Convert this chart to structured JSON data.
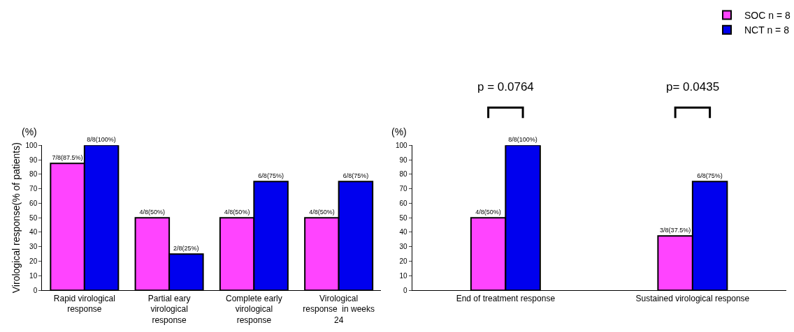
{
  "chart_data": [
    {
      "type": "bar",
      "ylabel": "Virological response(% of patients)",
      "annotations": [
        "(%)"
      ],
      "categories": [
        "Rapid virological response",
        "Partial eary virological response",
        "Complete early virological response",
        "Virological response  in weeks 24"
      ],
      "series": [
        {
          "name": "SOC n = 8",
          "color": "#ff44ff",
          "values": [
            87.5,
            50,
            50,
            50
          ],
          "value_labels": [
            "7/8(87.5%)",
            "4/8(50%)",
            "4/8(50%)",
            "4/8(50%)"
          ]
        },
        {
          "name": "NCT n = 8",
          "color": "#0000ee",
          "values": [
            100,
            25,
            75,
            75
          ],
          "value_labels": [
            "8/8(100%)",
            "2/8(25%)",
            "6/8(75%)",
            "6/8(75%)"
          ]
        }
      ],
      "ylim": [
        0,
        100
      ],
      "yticks": [
        0,
        10,
        20,
        30,
        40,
        50,
        60,
        70,
        80,
        90,
        100
      ],
      "legend": "top right"
    },
    {
      "type": "bar",
      "annotations": [
        "(%)",
        "p = 0.0764",
        "p= 0.0435"
      ],
      "categories": [
        "End of treatment response",
        "Sustained virological response"
      ],
      "series": [
        {
          "color": "#ff44ff",
          "values": [
            50,
            37.5
          ],
          "value_labels": [
            "4/8(50%)",
            "3/8(37.5%)"
          ]
        },
        {
          "color": "#0000ee",
          "values": [
            100,
            75
          ],
          "value_labels": [
            "8/8(100%)",
            "6/8(75%)"
          ]
        }
      ],
      "ylim": [
        0,
        100
      ],
      "yticks": [
        0,
        10,
        20,
        30,
        40,
        50,
        60,
        70,
        80,
        90,
        100
      ]
    }
  ]
}
